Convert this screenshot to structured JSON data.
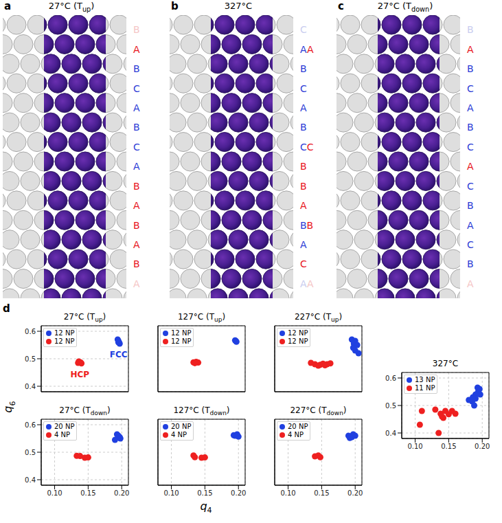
{
  "panels": [
    {
      "label": "a",
      "title": [
        "27°C (T",
        "up",
        ")"
      ],
      "layers": [
        [
          {
            "text": "B",
            "color": "#f5c6c6"
          }
        ],
        [
          {
            "text": "A",
            "color": "#e8141c"
          }
        ],
        [
          {
            "text": "B",
            "color": "#2b3bd6"
          }
        ],
        [
          {
            "text": "C",
            "color": "#2b3bd6"
          }
        ],
        [
          {
            "text": "A",
            "color": "#2b3bd6"
          }
        ],
        [
          {
            "text": "B",
            "color": "#2b3bd6"
          }
        ],
        [
          {
            "text": "C",
            "color": "#2b3bd6"
          }
        ],
        [
          {
            "text": "A",
            "color": "#2b3bd6"
          }
        ],
        [
          {
            "text": "B",
            "color": "#e8141c"
          }
        ],
        [
          {
            "text": "A",
            "color": "#e8141c"
          }
        ],
        [
          {
            "text": "B",
            "color": "#e8141c"
          }
        ],
        [
          {
            "text": "A",
            "color": "#e8141c"
          }
        ],
        [
          {
            "text": "B",
            "color": "#e8141c"
          }
        ],
        [
          {
            "text": "A",
            "color": "#f5c6c6"
          }
        ]
      ]
    },
    {
      "label": "b",
      "title": [
        "327°C"
      ],
      "layers": [
        [
          {
            "text": "C",
            "color": "#c9cdef"
          }
        ],
        [
          {
            "text": "A",
            "color": "#2b3bd6"
          },
          {
            "text": "A",
            "color": "#e8141c"
          }
        ],
        [
          {
            "text": "B",
            "color": "#2b3bd6"
          }
        ],
        [
          {
            "text": "C",
            "color": "#2b3bd6"
          }
        ],
        [
          {
            "text": "A",
            "color": "#2b3bd6"
          }
        ],
        [
          {
            "text": "B",
            "color": "#2b3bd6"
          }
        ],
        [
          {
            "text": "C",
            "color": "#2b3bd6"
          },
          {
            "text": "C",
            "color": "#e8141c"
          }
        ],
        [
          {
            "text": "B",
            "color": "#e8141c"
          }
        ],
        [
          {
            "text": "B",
            "color": "#e8141c"
          }
        ],
        [
          {
            "text": "A",
            "color": "#e8141c"
          }
        ],
        [
          {
            "text": "B",
            "color": "#2b3bd6"
          },
          {
            "text": "B",
            "color": "#e8141c"
          }
        ],
        [
          {
            "text": "A",
            "color": "#2b3bd6"
          }
        ],
        [
          {
            "text": "C",
            "color": "#e8141c"
          }
        ],
        [
          {
            "text": "A",
            "color": "#c9cdef"
          },
          {
            "text": "A",
            "color": "#f5c6c6"
          }
        ]
      ]
    },
    {
      "label": "c",
      "title": [
        "27°C (T",
        "down",
        ")"
      ],
      "layers": [
        [
          {
            "text": "B",
            "color": "#c9cdef"
          }
        ],
        [
          {
            "text": "A",
            "color": "#e8141c"
          }
        ],
        [
          {
            "text": "B",
            "color": "#2b3bd6"
          }
        ],
        [
          {
            "text": "C",
            "color": "#2b3bd6"
          }
        ],
        [
          {
            "text": "A",
            "color": "#2b3bd6"
          }
        ],
        [
          {
            "text": "B",
            "color": "#2b3bd6"
          }
        ],
        [
          {
            "text": "C",
            "color": "#2b3bd6"
          }
        ],
        [
          {
            "text": "A",
            "color": "#e8141c"
          }
        ],
        [
          {
            "text": "C",
            "color": "#2b3bd6"
          }
        ],
        [
          {
            "text": "B",
            "color": "#2b3bd6"
          }
        ],
        [
          {
            "text": "A",
            "color": "#2b3bd6"
          }
        ],
        [
          {
            "text": "C",
            "color": "#2b3bd6"
          }
        ],
        [
          {
            "text": "B",
            "color": "#2b3bd6"
          }
        ],
        [
          {
            "text": "A",
            "color": "#f5c6c6"
          }
        ]
      ]
    }
  ],
  "panel_d": {
    "label": "d",
    "x_label": [
      "q",
      "4"
    ],
    "y_label": [
      "q",
      "6"
    ]
  },
  "chart_data": [
    {
      "type": "scatter",
      "title": [
        "27°C (T",
        "up",
        ")"
      ],
      "xlim": [
        0.08,
        0.21
      ],
      "ylim": [
        0.38,
        0.62
      ],
      "xticks": [
        {
          "value": 0.1,
          "label": "0.10"
        },
        0.15,
        {
          "value": 0.2,
          "label": "0.20"
        }
      ],
      "yticks": [
        0.4,
        0.5,
        0.6
      ],
      "grid": true,
      "legend": "upper left",
      "tick_labels": "y",
      "series": [
        {
          "name": "12 NP",
          "color": "#2040e0",
          "marker": "circle",
          "annotation": "FCC",
          "x": [
            0.195,
            0.196,
            0.194,
            0.197,
            0.195
          ],
          "values": [
            0.565,
            0.56,
            0.57,
            0.555,
            0.56
          ]
        },
        {
          "name": "12 NP",
          "color": "#ee2020",
          "marker": "circle",
          "annotation": "HCP",
          "x": [
            0.135,
            0.138,
            0.14,
            0.136,
            0.139
          ],
          "values": [
            0.485,
            0.487,
            0.483,
            0.49,
            0.486
          ]
        }
      ]
    },
    {
      "type": "scatter",
      "title": [
        "127°C (T",
        "up",
        ")"
      ],
      "xlim": [
        0.08,
        0.21
      ],
      "ylim": [
        0.38,
        0.62
      ],
      "xticks": [
        {
          "value": 0.1,
          "label": "0.10"
        },
        0.15,
        {
          "value": 0.2,
          "label": "0.20"
        }
      ],
      "yticks": [
        0.4,
        0.5,
        0.6
      ],
      "grid": true,
      "legend": "upper left",
      "tick_labels": false,
      "series": [
        {
          "name": "12 NP",
          "color": "#2040e0",
          "marker": "circle",
          "x": [
            0.196,
            0.197,
            0.195
          ],
          "values": [
            0.565,
            0.562,
            0.567
          ]
        },
        {
          "name": "12 NP",
          "color": "#ee2020",
          "marker": "circle",
          "x": [
            0.133,
            0.137,
            0.14,
            0.135
          ],
          "values": [
            0.487,
            0.489,
            0.486,
            0.484
          ]
        }
      ]
    },
    {
      "type": "scatter",
      "title": [
        "227°C (T",
        "up",
        ")"
      ],
      "xlim": [
        0.08,
        0.21
      ],
      "ylim": [
        0.38,
        0.62
      ],
      "xticks": [
        {
          "value": 0.1,
          "label": "0.10"
        },
        0.15,
        {
          "value": 0.2,
          "label": "0.20"
        }
      ],
      "yticks": [
        0.4,
        0.5,
        0.6
      ],
      "grid": true,
      "legend": "upper left",
      "tick_labels": false,
      "series": [
        {
          "name": "12 NP",
          "color": "#2040e0",
          "marker": "circle",
          "x": [
            0.195,
            0.2,
            0.198,
            0.203,
            0.2,
            0.205,
            0.197
          ],
          "values": [
            0.57,
            0.565,
            0.555,
            0.55,
            0.53,
            0.52,
            0.54
          ]
        },
        {
          "name": "12 NP",
          "color": "#ee2020",
          "marker": "circle",
          "x": [
            0.134,
            0.14,
            0.148,
            0.152,
            0.158,
            0.163,
            0.145,
            0.155
          ],
          "values": [
            0.485,
            0.48,
            0.478,
            0.482,
            0.48,
            0.483,
            0.475,
            0.476
          ]
        }
      ]
    },
    {
      "type": "scatter",
      "title": [
        "327°C"
      ],
      "xlim": [
        0.08,
        0.21
      ],
      "ylim": [
        0.38,
        0.62
      ],
      "xticks": [
        {
          "value": 0.1,
          "label": "0.10"
        },
        0.15,
        {
          "value": 0.2,
          "label": "0.20"
        }
      ],
      "yticks": [
        0.4,
        0.5,
        0.6
      ],
      "grid": true,
      "legend": "upper left",
      "series": [
        {
          "name": "13 NP",
          "color": "#2040e0",
          "marker": "circle",
          "x": [
            0.18,
            0.185,
            0.188,
            0.19,
            0.193,
            0.196,
            0.19,
            0.186,
            0.197,
            0.194
          ],
          "values": [
            0.52,
            0.515,
            0.5,
            0.54,
            0.565,
            0.56,
            0.525,
            0.53,
            0.54,
            0.55
          ]
        },
        {
          "name": "11 NP",
          "color": "#ee2020",
          "marker": "circle",
          "x": [
            0.107,
            0.11,
            0.13,
            0.135,
            0.138,
            0.142,
            0.145,
            0.15,
            0.155,
            0.16,
            0.14
          ],
          "values": [
            0.43,
            0.48,
            0.485,
            0.4,
            0.47,
            0.455,
            0.48,
            0.468,
            0.48,
            0.47,
            0.46
          ]
        }
      ]
    },
    {
      "type": "scatter",
      "title": [
        "27°C (T",
        "down",
        ")"
      ],
      "xlim": [
        0.08,
        0.21
      ],
      "ylim": [
        0.38,
        0.62
      ],
      "xticks": [
        {
          "value": 0.1,
          "label": "0.10"
        },
        0.15,
        {
          "value": 0.2,
          "label": "0.20"
        }
      ],
      "yticks": [
        0.4,
        0.5,
        0.6
      ],
      "grid": true,
      "legend": "upper left",
      "series": [
        {
          "name": "20 NP",
          "color": "#2040e0",
          "marker": "circle",
          "x": [
            0.19,
            0.195,
            0.197,
            0.193,
            0.198
          ],
          "values": [
            0.545,
            0.56,
            0.555,
            0.565,
            0.55
          ]
        },
        {
          "name": "4 NP",
          "color": "#ee2020",
          "marker": "circle",
          "x": [
            0.133,
            0.138,
            0.145,
            0.15
          ],
          "values": [
            0.487,
            0.486,
            0.48,
            0.481
          ]
        }
      ]
    },
    {
      "type": "scatter",
      "title": [
        "127°C (T",
        "down",
        ")"
      ],
      "xlim": [
        0.08,
        0.21
      ],
      "ylim": [
        0.38,
        0.62
      ],
      "xticks": [
        {
          "value": 0.1,
          "label": "0.10"
        },
        0.15,
        {
          "value": 0.2,
          "label": "0.20"
        }
      ],
      "yticks": [
        0.4,
        0.5,
        0.6
      ],
      "grid": true,
      "legend": "upper left",
      "tick_labels": "x",
      "series": [
        {
          "name": "20 NP",
          "color": "#2040e0",
          "marker": "circle",
          "x": [
            0.195,
            0.198,
            0.2,
            0.193
          ],
          "values": [
            0.56,
            0.565,
            0.557,
            0.562
          ]
        },
        {
          "name": "4 NP",
          "color": "#ee2020",
          "marker": "circle",
          "x": [
            0.133,
            0.145,
            0.15,
            0.135
          ],
          "values": [
            0.488,
            0.48,
            0.481,
            0.482
          ]
        }
      ]
    },
    {
      "type": "scatter",
      "title": [
        "227°C (T",
        "down",
        ")"
      ],
      "xlim": [
        0.08,
        0.21
      ],
      "ylim": [
        0.38,
        0.62
      ],
      "xticks": [
        {
          "value": 0.1,
          "label": "0.10"
        },
        0.15,
        {
          "value": 0.2,
          "label": "0.20"
        }
      ],
      "yticks": [
        0.4,
        0.5,
        0.6
      ],
      "grid": true,
      "legend": "upper left",
      "tick_labels": "x",
      "series": [
        {
          "name": "20 NP",
          "color": "#2040e0",
          "marker": "circle",
          "x": [
            0.19,
            0.195,
            0.2,
            0.197,
            0.192
          ],
          "values": [
            0.56,
            0.555,
            0.56,
            0.565,
            0.552
          ]
        },
        {
          "name": "4 NP",
          "color": "#ee2020",
          "marker": "circle",
          "x": [
            0.14,
            0.145,
            0.148
          ],
          "values": [
            0.485,
            0.488,
            0.482
          ]
        }
      ]
    }
  ]
}
